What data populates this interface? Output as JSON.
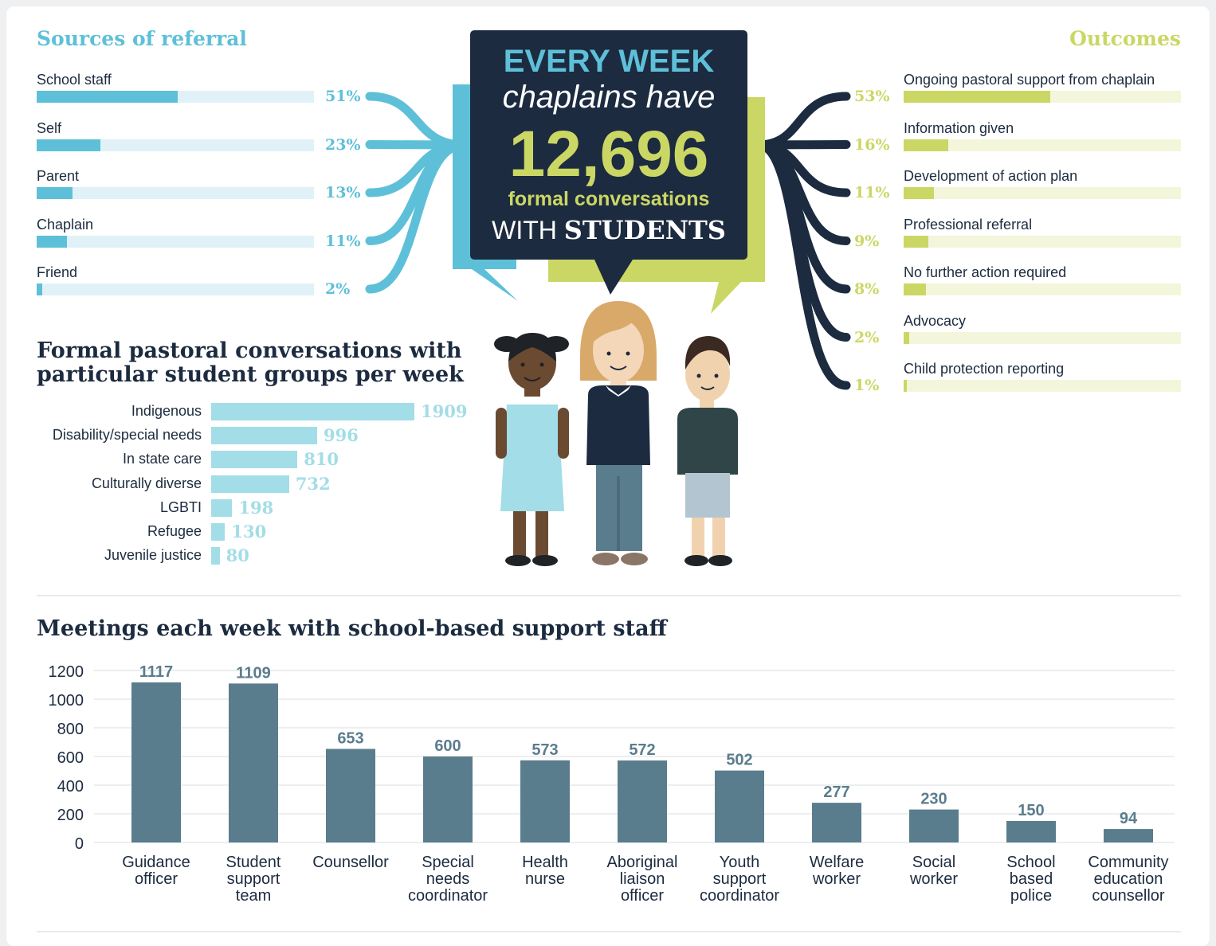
{
  "sources": {
    "title": "Sources of referral",
    "items": [
      {
        "label": "School staff",
        "percent": "51%",
        "value": 51
      },
      {
        "label": "Self",
        "percent": "23%",
        "value": 23
      },
      {
        "label": "Parent",
        "percent": "13%",
        "value": 13
      },
      {
        "label": "Chaplain",
        "percent": "11%",
        "value": 11
      },
      {
        "label": "Friend",
        "percent": "2%",
        "value": 2
      }
    ]
  },
  "outcomes": {
    "title": "Outcomes",
    "items": [
      {
        "label": "Ongoing pastoral support from chaplain",
        "percent": "53%",
        "value": 53
      },
      {
        "label": "Information given",
        "percent": "16%",
        "value": 16
      },
      {
        "label": "Development of action plan",
        "percent": "11%",
        "value": 11
      },
      {
        "label": "Professional referral",
        "percent": "9%",
        "value": 9
      },
      {
        "label": "No further action required",
        "percent": "8%",
        "value": 8
      },
      {
        "label": "Advocacy",
        "percent": "2%",
        "value": 2
      },
      {
        "label": "Child protection reporting",
        "percent": "1%",
        "value": 1
      }
    ]
  },
  "bubble": {
    "line1": "EVERY WEEK",
    "line2": "chaplains have",
    "number": "12,696",
    "line4": "formal conversations",
    "line5a": "WITH",
    "line5b": "STUDENTS"
  },
  "groups": {
    "title_line1": "Formal pastoral conversations with",
    "title_line2": "particular student groups per week"
  },
  "meetings": {
    "title": "Meetings each week with school-based support staff"
  },
  "colors": {
    "blue": "#5ec0d8",
    "blue_track": "#e0f2f7",
    "green": "#cbd764",
    "green_track": "#f4f6dc",
    "navy": "#1c2b3f",
    "light_blue": "#a3dde7",
    "slate": "#5a7d8e"
  },
  "chart_data": [
    {
      "type": "bar",
      "orientation": "horizontal",
      "title": "Formal pastoral conversations with particular student groups per week",
      "categories": [
        "Indigenous",
        "Disability/special needs",
        "In state care",
        "Culturally diverse",
        "LGBTI",
        "Refugee",
        "Juvenile justice"
      ],
      "values": [
        1909,
        996,
        810,
        732,
        198,
        130,
        80
      ],
      "xlabel": "",
      "ylabel": "",
      "grid": false
    },
    {
      "type": "bar",
      "title": "Meetings each week with school-based support staff",
      "categories": [
        [
          "Guidance",
          "officer"
        ],
        [
          "Student",
          "support",
          "team"
        ],
        [
          "Counsellor"
        ],
        [
          "Special",
          "needs",
          "coordinator"
        ],
        [
          "Health",
          "nurse"
        ],
        [
          "Aboriginal",
          "liaison",
          "officer"
        ],
        [
          "Youth",
          "support",
          "coordinator"
        ],
        [
          "Welfare",
          "worker"
        ],
        [
          "Social",
          "worker"
        ],
        [
          "School",
          "based",
          "police"
        ],
        [
          "Community",
          "education",
          "counsellor"
        ]
      ],
      "values": [
        1117,
        1109,
        653,
        600,
        573,
        572,
        502,
        277,
        230,
        150,
        94
      ],
      "yticks": [
        "0",
        "200",
        "400",
        "600",
        "800",
        "1000",
        "1200"
      ],
      "ylim": [
        0,
        1200
      ],
      "xlabel": "",
      "ylabel": "",
      "grid": true
    }
  ]
}
